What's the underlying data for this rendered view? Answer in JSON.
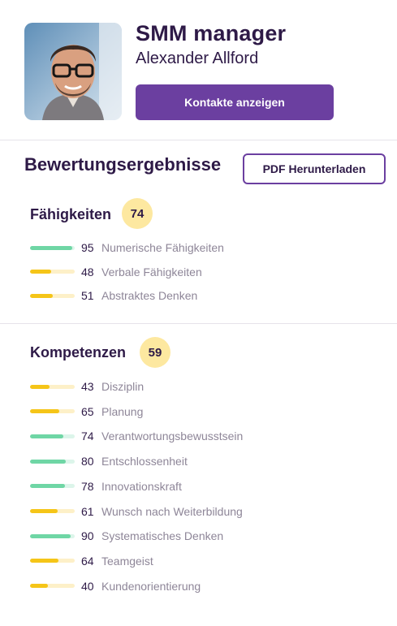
{
  "profile": {
    "role": "SMM manager",
    "name": "Alexander Allford",
    "contact_button": "Kontakte anzeigen"
  },
  "results": {
    "title": "Bewertungsergebnisse",
    "pdf_button": "PDF Herunterladen"
  },
  "skills": {
    "title": "Fähigkeiten",
    "score": "74",
    "items": [
      {
        "value": "95",
        "label": "Numerische Fähigkeiten",
        "level": 95,
        "status": "green"
      },
      {
        "value": "48",
        "label": "Verbale Fähigkeiten",
        "level": 48,
        "status": "yellow"
      },
      {
        "value": "51",
        "label": "Abstraktes Denken",
        "level": 51,
        "status": "yellow"
      }
    ]
  },
  "competencies": {
    "title": "Kompetenzen",
    "score": "59",
    "items": [
      {
        "value": "43",
        "label": "Disziplin",
        "level": 43,
        "status": "yellow"
      },
      {
        "value": "65",
        "label": "Planung",
        "level": 65,
        "status": "yellow"
      },
      {
        "value": "74",
        "label": "Verantwortungsbewusstsein",
        "level": 74,
        "status": "green"
      },
      {
        "value": "80",
        "label": "Entschlossenheit",
        "level": 80,
        "status": "green"
      },
      {
        "value": "78",
        "label": "Innovationskraft",
        "level": 78,
        "status": "green"
      },
      {
        "value": "61",
        "label": "Wunsch nach Weiterbildung",
        "level": 61,
        "status": "yellow"
      },
      {
        "value": "90",
        "label": "Systematisches Denken",
        "level": 90,
        "status": "green"
      },
      {
        "value": "64",
        "label": "Teamgeist",
        "level": 64,
        "status": "yellow"
      },
      {
        "value": "40",
        "label": "Kundenorientierung",
        "level": 40,
        "status": "yellow"
      }
    ]
  },
  "colors": {
    "accent": "#6b3fa0",
    "badge": "#fde8a0",
    "good": "#6fd6a5",
    "average": "#f5c518"
  }
}
